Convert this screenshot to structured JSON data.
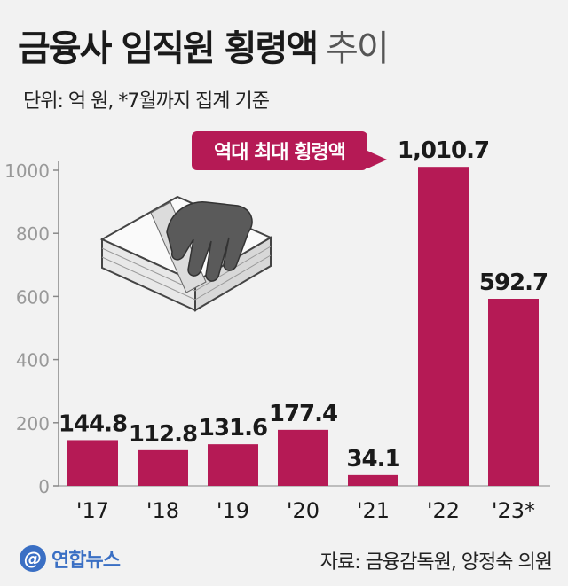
{
  "title": "금융사 임직원 횡령액",
  "title_suffix": "추이",
  "unit_note": "단위: 억 원, *7월까지 집계 기준",
  "callout": "역대 최대 횡령액",
  "logo_text": "연합뉴스",
  "logo_mark": "@",
  "source": "자료: 금융감독원, 양정숙 의원",
  "colors": {
    "bar": "#b51a55",
    "axis": "#888888",
    "background": "#f2f2f2"
  },
  "chart_data": {
    "type": "bar",
    "categories": [
      "'17",
      "'18",
      "'19",
      "'20",
      "'21",
      "'22",
      "'23*"
    ],
    "values": [
      144.8,
      112.8,
      131.6,
      177.4,
      34.1,
      1010.7,
      592.7
    ],
    "value_labels": [
      "144.8",
      "112.8",
      "131.6",
      "177.4",
      "34.1",
      "1,010.7",
      "592.7"
    ],
    "ylim": [
      0,
      1000
    ],
    "yticks": [
      0,
      200,
      400,
      600,
      800,
      1000
    ],
    "grid": false,
    "legend": "none"
  }
}
